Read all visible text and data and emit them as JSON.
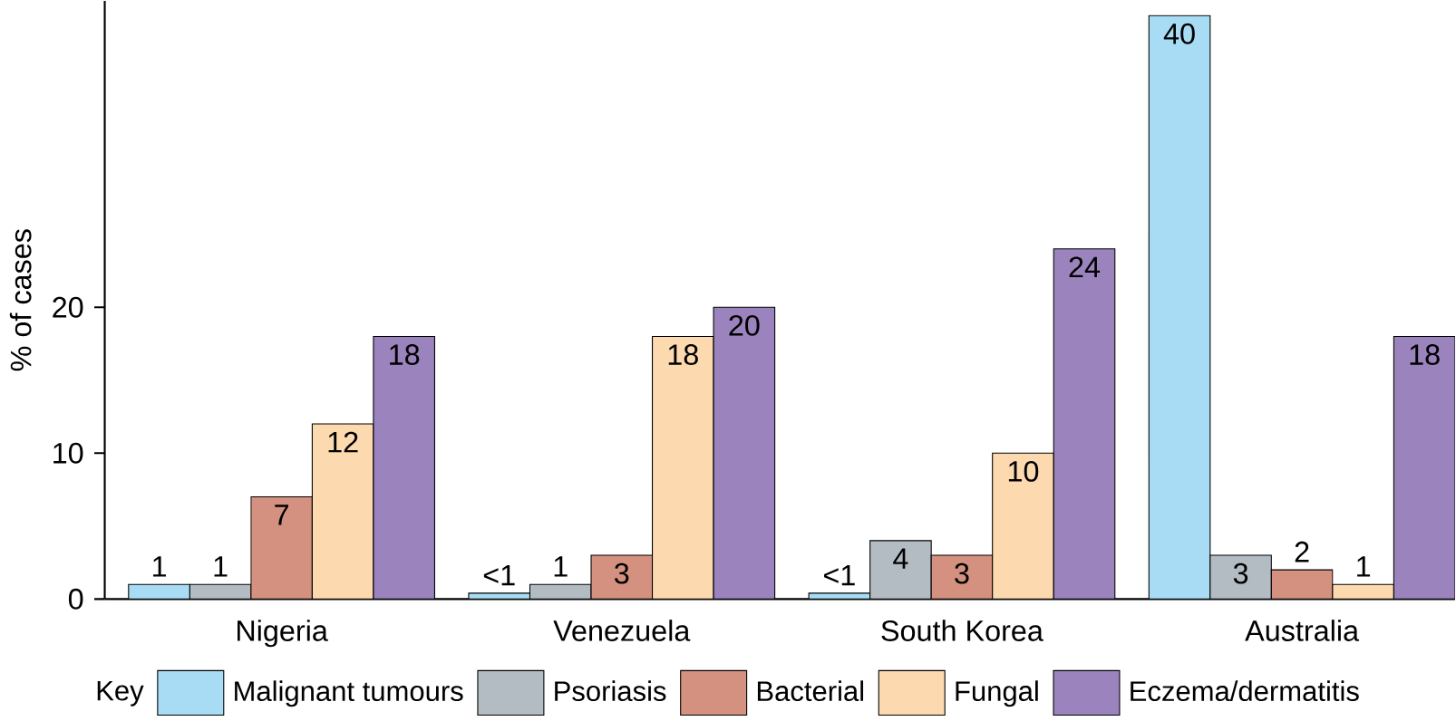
{
  "chart_data": {
    "type": "bar",
    "ylabel": "% of cases",
    "legend_title": "Key",
    "legend": "bottom",
    "categories": [
      "Nigeria",
      "Venezuela",
      "South Korea",
      "Australia"
    ],
    "ylim": [
      0,
      41
    ],
    "yticks": [
      0,
      10,
      20
    ],
    "series": [
      {
        "name": "Malignant tumours",
        "color": "#a8dcf5",
        "values": [
          1,
          0.4,
          0.4,
          40
        ],
        "value_labels": [
          "1",
          "<1",
          "<1",
          "40"
        ]
      },
      {
        "name": "Psoriasis",
        "color": "#b4bcc3",
        "values": [
          1,
          1,
          4,
          3
        ],
        "value_labels": [
          "1",
          "1",
          "4",
          "3"
        ]
      },
      {
        "name": "Bacterial",
        "color": "#d4917f",
        "values": [
          7,
          3,
          3,
          2
        ],
        "value_labels": [
          "7",
          "3",
          "3",
          "2"
        ]
      },
      {
        "name": "Fungal",
        "color": "#fdd9b0",
        "values": [
          12,
          18,
          10,
          1
        ],
        "value_labels": [
          "12",
          "18",
          "10",
          "1"
        ]
      },
      {
        "name": "Eczema/dermatitis",
        "color": "#9b83bd",
        "values": [
          18,
          20,
          24,
          18
        ],
        "value_labels": [
          "18",
          "20",
          "24",
          "18"
        ]
      }
    ]
  }
}
